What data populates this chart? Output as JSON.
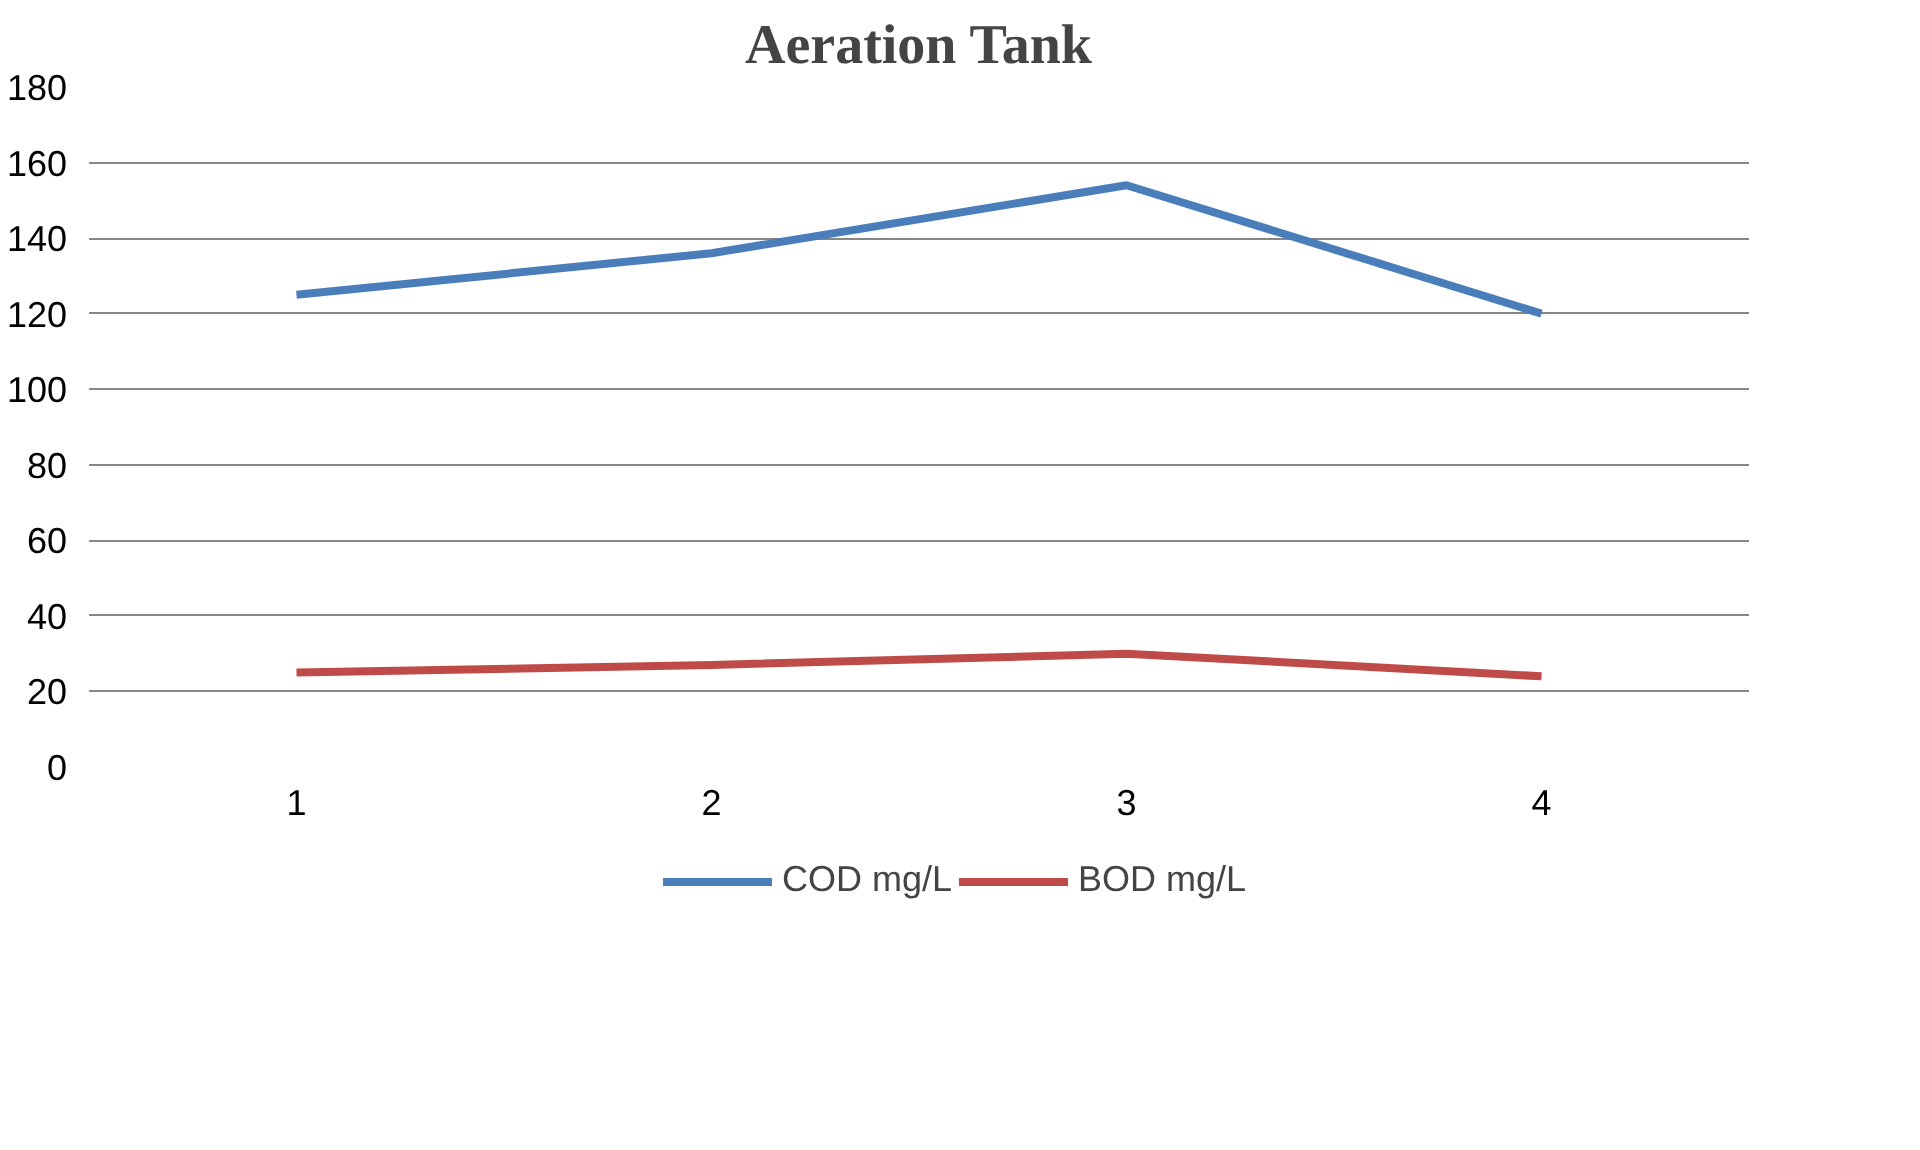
{
  "chart_data": {
    "type": "line",
    "title": "Aeration Tank",
    "categories": [
      "1",
      "2",
      "3",
      "4"
    ],
    "series": [
      {
        "name": "COD mg/L",
        "color": "#4a7ebb",
        "values": [
          125,
          136,
          154,
          120
        ]
      },
      {
        "name": "BOD mg/L",
        "color": "#be4b48",
        "values": [
          25,
          27,
          30,
          24
        ]
      }
    ],
    "ylim": [
      0,
      180
    ],
    "yticks": [
      0,
      20,
      40,
      60,
      80,
      100,
      120,
      140,
      160,
      180
    ],
    "grid": "y",
    "legend": "bottom",
    "marker": "none",
    "line_style": "solid"
  }
}
